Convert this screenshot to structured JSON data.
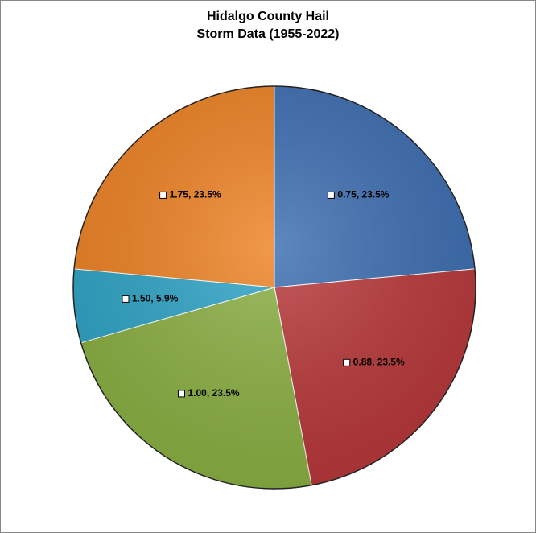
{
  "chart_data": {
    "type": "pie",
    "title_line1": "Hidalgo County Hail",
    "title_line2": "Storm Data (1955-2022)",
    "categories": [
      "0.75",
      "0.88",
      "1.00",
      "1.50",
      "1.75"
    ],
    "values": [
      23.5,
      23.5,
      23.5,
      5.9,
      23.5
    ],
    "labels": [
      "0.75, 23.5%",
      "0.88, 23.5%",
      "1.00, 23.5%",
      "1.50, 5.9%",
      "1.75, 23.5%"
    ],
    "colors": [
      "#3C6DB0",
      "#B8383A",
      "#8BB043",
      "#2FA4C6",
      "#ED8224"
    ],
    "start_angle_deg": 0,
    "direction": "clockwise"
  }
}
